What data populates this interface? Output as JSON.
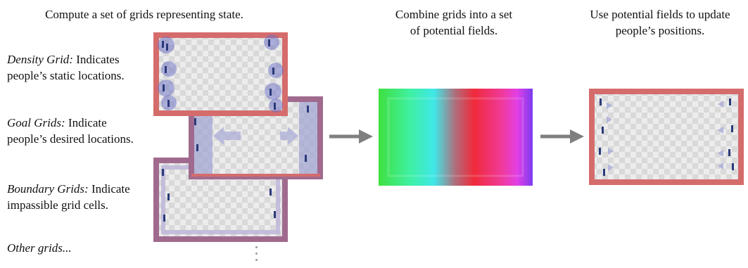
{
  "captions": {
    "step1": "Compute a set of grids representing state.",
    "step2_line1": "Combine grids into a set",
    "step2_line2": "of potential fields.",
    "step3_line1": "Use potential fields to update",
    "step3_line2": "people’s positions."
  },
  "grids": {
    "density": {
      "term": "Density Grid:",
      "desc1": " Indicates",
      "desc2": "people’s static locations."
    },
    "goal": {
      "term": "Goal Grids:",
      "desc1": " Indicate",
      "desc2": "people’s desired locations."
    },
    "boundary": {
      "term": "Boundary Grids:",
      "desc1": " Indicate",
      "desc2": "impassible grid cells."
    },
    "other": {
      "term": "Other grids..."
    }
  },
  "colors": {
    "density_border": "#d56c6c",
    "goal_border": "#a06a8e",
    "boundary_border": "#a06a8e",
    "result_border": "#d56c6c",
    "arrow": "#7f7f7f"
  }
}
